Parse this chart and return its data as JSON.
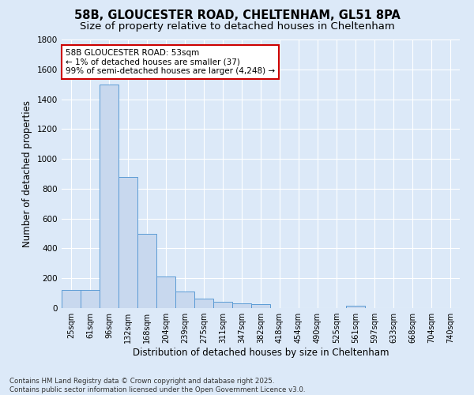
{
  "title1": "58B, GLOUCESTER ROAD, CHELTENHAM, GL51 8PA",
  "title2": "Size of property relative to detached houses in Cheltenham",
  "xlabel": "Distribution of detached houses by size in Cheltenham",
  "ylabel": "Number of detached properties",
  "categories": [
    "25sqm",
    "61sqm",
    "96sqm",
    "132sqm",
    "168sqm",
    "204sqm",
    "239sqm",
    "275sqm",
    "311sqm",
    "347sqm",
    "382sqm",
    "418sqm",
    "454sqm",
    "490sqm",
    "525sqm",
    "561sqm",
    "597sqm",
    "633sqm",
    "668sqm",
    "704sqm",
    "740sqm"
  ],
  "values": [
    120,
    120,
    1500,
    880,
    500,
    210,
    110,
    65,
    40,
    30,
    25,
    0,
    0,
    0,
    0,
    15,
    0,
    0,
    0,
    0,
    0
  ],
  "bar_color": "#c8d8ee",
  "bar_edge_color": "#5b9bd5",
  "bg_color": "#dce9f8",
  "plot_bg_color": "#dce9f8",
  "grid_color": "#ffffff",
  "annotation_text": "58B GLOUCESTER ROAD: 53sqm\n← 1% of detached houses are smaller (37)\n99% of semi-detached houses are larger (4,248) →",
  "annotation_box_color": "#ffffff",
  "annotation_box_edge": "#cc0000",
  "ylim": [
    0,
    1800
  ],
  "yticks": [
    0,
    200,
    400,
    600,
    800,
    1000,
    1200,
    1400,
    1600,
    1800
  ],
  "footnote": "Contains HM Land Registry data © Crown copyright and database right 2025.\nContains public sector information licensed under the Open Government Licence v3.0.",
  "title_fontsize": 10.5,
  "subtitle_fontsize": 9.5,
  "axis_label_fontsize": 8.5,
  "tick_fontsize": 7,
  "annot_fontsize": 7.5
}
